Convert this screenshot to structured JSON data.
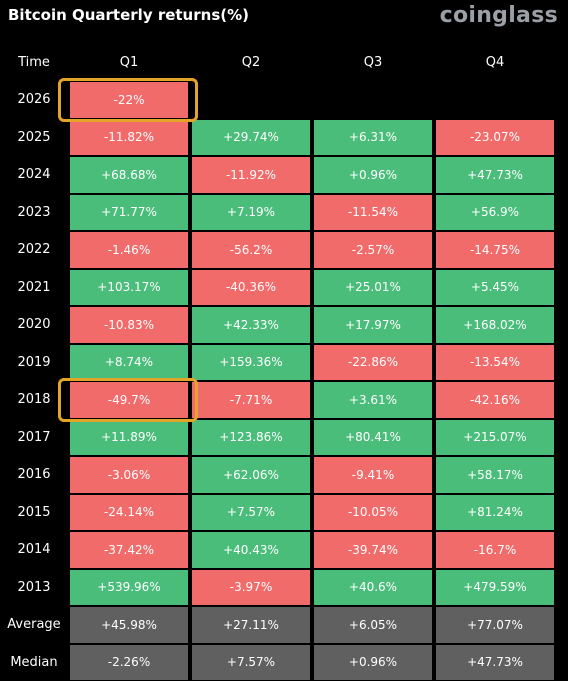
{
  "title": "Bitcoin Quarterly returns(%)",
  "brand": "coinglass",
  "colors": {
    "positive": "#4bbd7b",
    "negative": "#f26b6b",
    "aggregate": "#606060",
    "highlight": "#e3a42a",
    "background": "#000000"
  },
  "chart_data": {
    "type": "table",
    "title": "Bitcoin Quarterly returns(%)",
    "row_header": "Time",
    "columns": [
      "Q1",
      "Q2",
      "Q3",
      "Q4"
    ],
    "rows": [
      {
        "label": "2026",
        "values": [
          "-22%",
          "",
          "",
          ""
        ]
      },
      {
        "label": "2025",
        "values": [
          "-11.82%",
          "+29.74%",
          "+6.31%",
          "-23.07%"
        ]
      },
      {
        "label": "2024",
        "values": [
          "+68.68%",
          "-11.92%",
          "+0.96%",
          "+47.73%"
        ]
      },
      {
        "label": "2023",
        "values": [
          "+71.77%",
          "+7.19%",
          "-11.54%",
          "+56.9%"
        ]
      },
      {
        "label": "2022",
        "values": [
          "-1.46%",
          "-56.2%",
          "-2.57%",
          "-14.75%"
        ]
      },
      {
        "label": "2021",
        "values": [
          "+103.17%",
          "-40.36%",
          "+25.01%",
          "+5.45%"
        ]
      },
      {
        "label": "2020",
        "values": [
          "-10.83%",
          "+42.33%",
          "+17.97%",
          "+168.02%"
        ]
      },
      {
        "label": "2019",
        "values": [
          "+8.74%",
          "+159.36%",
          "-22.86%",
          "-13.54%"
        ]
      },
      {
        "label": "2018",
        "values": [
          "-49.7%",
          "-7.71%",
          "+3.61%",
          "-42.16%"
        ]
      },
      {
        "label": "2017",
        "values": [
          "+11.89%",
          "+123.86%",
          "+80.41%",
          "+215.07%"
        ]
      },
      {
        "label": "2016",
        "values": [
          "-3.06%",
          "+62.06%",
          "-9.41%",
          "+58.17%"
        ]
      },
      {
        "label": "2015",
        "values": [
          "-24.14%",
          "+7.57%",
          "-10.05%",
          "+81.24%"
        ]
      },
      {
        "label": "2014",
        "values": [
          "-37.42%",
          "+40.43%",
          "-39.74%",
          "-16.7%"
        ]
      },
      {
        "label": "2013",
        "values": [
          "+539.96%",
          "-3.97%",
          "+40.6%",
          "+479.59%"
        ]
      }
    ],
    "summary_rows": [
      {
        "label": "Average",
        "values": [
          "+45.98%",
          "+27.11%",
          "+6.05%",
          "+77.07%"
        ]
      },
      {
        "label": "Median",
        "values": [
          "-2.26%",
          "+7.57%",
          "+0.96%",
          "+47.73%"
        ]
      }
    ],
    "highlighted_cells": [
      {
        "row": "2026",
        "column": "Q1"
      },
      {
        "row": "2018",
        "column": "Q1"
      }
    ]
  }
}
